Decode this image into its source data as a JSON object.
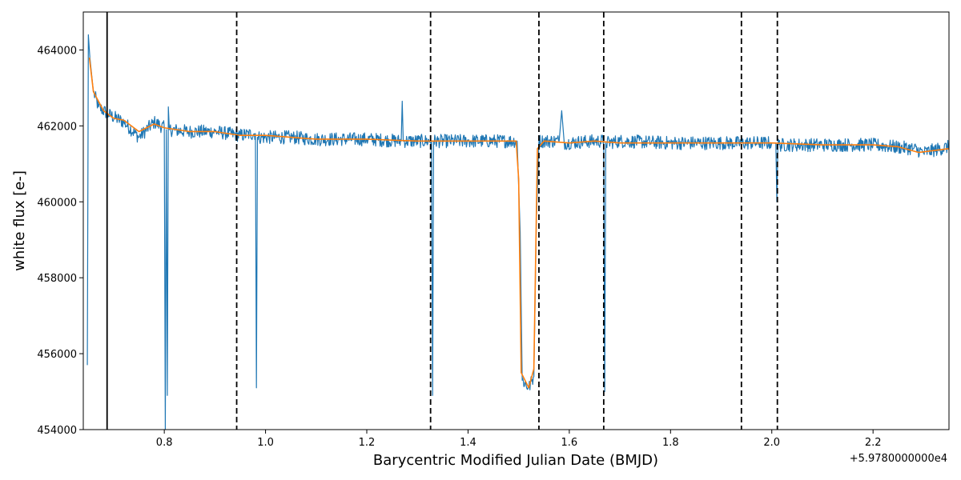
{
  "chart_data": {
    "type": "line",
    "title": "",
    "xlabel": "Barycentric Modified Julian Date (BMJD)",
    "ylabel": "white flux [e-]",
    "x_offset_label": "+5.9780000000e4",
    "xlim": [
      0.64,
      2.35
    ],
    "ylim": [
      454000,
      465000
    ],
    "x_ticks": [
      0.8,
      1.0,
      1.2,
      1.4,
      1.6,
      1.8,
      2.0,
      2.2
    ],
    "x_tick_labels": [
      "0.8",
      "1.0",
      "1.2",
      "1.4",
      "1.6",
      "1.8",
      "2.0",
      "2.2"
    ],
    "y_ticks": [
      454000,
      456000,
      458000,
      460000,
      462000,
      464000
    ],
    "y_tick_labels": [
      "454000",
      "456000",
      "458000",
      "460000",
      "462000",
      "464000"
    ],
    "grid": false,
    "series": [
      {
        "color": "#1f77b4",
        "role": "raw",
        "noise_amplitude": 180,
        "points": [
          [
            0.648,
            455700
          ],
          [
            0.65,
            464400
          ],
          [
            0.653,
            463800
          ],
          [
            0.66,
            462900
          ],
          [
            0.67,
            462500
          ],
          [
            0.69,
            462300
          ],
          [
            0.72,
            462100
          ],
          [
            0.75,
            461700
          ],
          [
            0.78,
            462100
          ],
          [
            0.8,
            461950
          ],
          [
            0.802,
            454000
          ],
          [
            0.804,
            461900
          ],
          [
            0.806,
            454900
          ],
          [
            0.808,
            462500
          ],
          [
            0.81,
            461900
          ],
          [
            0.85,
            461850
          ],
          [
            0.9,
            461850
          ],
          [
            0.95,
            461750
          ],
          [
            0.98,
            461800
          ],
          [
            0.982,
            455100
          ],
          [
            0.984,
            461700
          ],
          [
            1.05,
            461700
          ],
          [
            1.1,
            461650
          ],
          [
            1.2,
            461650
          ],
          [
            1.268,
            461600
          ],
          [
            1.27,
            462650
          ],
          [
            1.272,
            461600
          ],
          [
            1.328,
            461600
          ],
          [
            1.33,
            454900
          ],
          [
            1.332,
            461600
          ],
          [
            1.4,
            461600
          ],
          [
            1.497,
            461600
          ],
          [
            1.503,
            459200
          ],
          [
            1.507,
            455300
          ],
          [
            1.52,
            455100
          ],
          [
            1.53,
            455400
          ],
          [
            1.535,
            459500
          ],
          [
            1.54,
            461600
          ],
          [
            1.58,
            461600
          ],
          [
            1.585,
            462400
          ],
          [
            1.59,
            461550
          ],
          [
            1.65,
            461600
          ],
          [
            1.668,
            461600
          ],
          [
            1.67,
            455000
          ],
          [
            1.672,
            461550
          ],
          [
            1.7,
            461600
          ],
          [
            1.8,
            461550
          ],
          [
            1.9,
            461550
          ],
          [
            2.0,
            461550
          ],
          [
            2.008,
            461550
          ],
          [
            2.01,
            460000
          ],
          [
            2.012,
            461500
          ],
          [
            2.1,
            461500
          ],
          [
            2.2,
            461500
          ],
          [
            2.28,
            461400
          ],
          [
            2.3,
            461300
          ],
          [
            2.35,
            461450
          ]
        ]
      },
      {
        "color": "#ff7f0e",
        "role": "smoothed",
        "points": [
          [
            0.652,
            463800
          ],
          [
            0.66,
            462900
          ],
          [
            0.68,
            462400
          ],
          [
            0.7,
            462200
          ],
          [
            0.72,
            462150
          ],
          [
            0.75,
            461850
          ],
          [
            0.78,
            462050
          ],
          [
            0.8,
            461950
          ],
          [
            0.85,
            461850
          ],
          [
            0.9,
            461850
          ],
          [
            0.95,
            461750
          ],
          [
            1.0,
            461750
          ],
          [
            1.05,
            461700
          ],
          [
            1.1,
            461650
          ],
          [
            1.2,
            461650
          ],
          [
            1.3,
            461600
          ],
          [
            1.4,
            461600
          ],
          [
            1.495,
            461600
          ],
          [
            1.5,
            460600
          ],
          [
            1.505,
            455500
          ],
          [
            1.52,
            455100
          ],
          [
            1.53,
            455600
          ],
          [
            1.537,
            461400
          ],
          [
            1.55,
            461600
          ],
          [
            1.6,
            461550
          ],
          [
            1.65,
            461600
          ],
          [
            1.7,
            461550
          ],
          [
            1.8,
            461550
          ],
          [
            1.9,
            461550
          ],
          [
            2.0,
            461550
          ],
          [
            2.1,
            461500
          ],
          [
            2.2,
            461500
          ],
          [
            2.25,
            461450
          ],
          [
            2.29,
            461300
          ],
          [
            2.32,
            461350
          ],
          [
            2.35,
            461400
          ]
        ]
      }
    ],
    "vlines": [
      {
        "x": 0.687,
        "style": "solid",
        "color": "#000000"
      },
      {
        "x": 0.943,
        "style": "dashed",
        "color": "#000000"
      },
      {
        "x": 1.326,
        "style": "dashed",
        "color": "#000000"
      },
      {
        "x": 1.54,
        "style": "dashed",
        "color": "#000000"
      },
      {
        "x": 1.668,
        "style": "dashed",
        "color": "#000000"
      },
      {
        "x": 1.94,
        "style": "dashed",
        "color": "#000000"
      },
      {
        "x": 2.011,
        "style": "dashed",
        "color": "#000000"
      }
    ]
  }
}
